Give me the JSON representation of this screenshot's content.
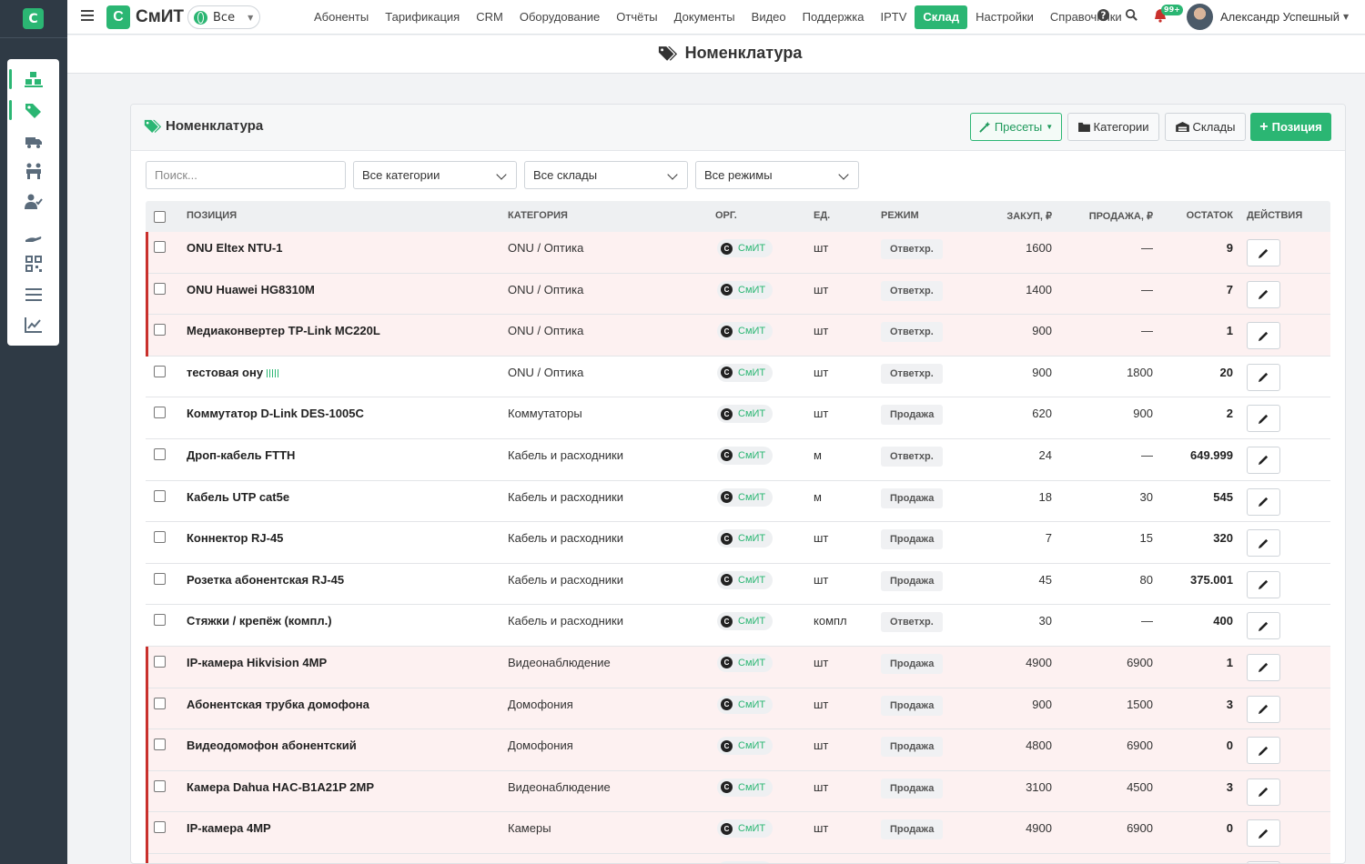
{
  "app": {
    "logo_letter": "С",
    "brand_name": "СмИТ",
    "scope_label": "Все"
  },
  "nav": {
    "items": [
      "Абоненты",
      "Тарификация",
      "CRM",
      "Оборудование",
      "Отчёты",
      "Документы",
      "Видео",
      "Поддержка",
      "IPTV",
      "Склад",
      "Настройки",
      "Справочники"
    ],
    "active": "Склад"
  },
  "top": {
    "notif_badge": "99+",
    "user_name": "Александр Успешный"
  },
  "page": {
    "title": "Номенклатура"
  },
  "card": {
    "title": "Номенклатура",
    "presets_label": "Пресеты",
    "categories_label": "Категории",
    "stores_label": "Склады",
    "add_label": "Позиция"
  },
  "filters": {
    "search_placeholder": "Поиск...",
    "category": "Все категории",
    "store": "Все склады",
    "mode": "Все режимы"
  },
  "table": {
    "headers": {
      "position": "ПОЗИЦИЯ",
      "category": "КАТЕГОРИЯ",
      "org": "ОРГ.",
      "unit": "ЕД.",
      "mode": "РЕЖИМ",
      "buy": "ЗАКУП, ₽",
      "sell": "ПРОДАЖА, ₽",
      "stock": "ОСТАТОК",
      "actions": "ДЕЙСТВИЯ"
    },
    "org_letter": "С",
    "org_name": "СмИТ",
    "rows": [
      {
        "name": "ONU Eltex NTU-1",
        "category": "ONU / Оптика",
        "unit": "шт",
        "mode": "Ответхр.",
        "buy": "1600",
        "sell": "—",
        "stock": "9",
        "alert": true
      },
      {
        "name": "ONU Huawei HG8310M",
        "category": "ONU / Оптика",
        "unit": "шт",
        "mode": "Ответхр.",
        "buy": "1400",
        "sell": "—",
        "stock": "7",
        "alert": true
      },
      {
        "name": "Медиаконвертер TP-Link MC220L",
        "category": "ONU / Оптика",
        "unit": "шт",
        "mode": "Ответхр.",
        "buy": "900",
        "sell": "—",
        "stock": "1",
        "alert": true
      },
      {
        "name": "тестовая ону",
        "category": "ONU / Оптика",
        "unit": "шт",
        "mode": "Ответхр.",
        "buy": "900",
        "sell": "1800",
        "stock": "20",
        "alert": false,
        "barcode": true
      },
      {
        "name": "Коммутатор D-Link DES-1005C",
        "category": "Коммутаторы",
        "unit": "шт",
        "mode": "Продажа",
        "buy": "620",
        "sell": "900",
        "stock": "2",
        "alert": false
      },
      {
        "name": "Дроп-кабель FTTH",
        "category": "Кабель и расходники",
        "unit": "м",
        "mode": "Ответхр.",
        "buy": "24",
        "sell": "—",
        "stock": "649.999",
        "alert": false
      },
      {
        "name": "Кабель UTP cat5e",
        "category": "Кабель и расходники",
        "unit": "м",
        "mode": "Продажа",
        "buy": "18",
        "sell": "30",
        "stock": "545",
        "alert": false
      },
      {
        "name": "Коннектор RJ-45",
        "category": "Кабель и расходники",
        "unit": "шт",
        "mode": "Продажа",
        "buy": "7",
        "sell": "15",
        "stock": "320",
        "alert": false
      },
      {
        "name": "Розетка абонентская RJ-45",
        "category": "Кабель и расходники",
        "unit": "шт",
        "mode": "Продажа",
        "buy": "45",
        "sell": "80",
        "stock": "375.001",
        "alert": false
      },
      {
        "name": "Стяжки / крепёж (компл.)",
        "category": "Кабель и расходники",
        "unit": "компл",
        "mode": "Ответхр.",
        "buy": "30",
        "sell": "—",
        "stock": "400",
        "alert": false
      },
      {
        "name": "IP-камера Hikvision 4MP",
        "category": "Видеонаблюдение",
        "unit": "шт",
        "mode": "Продажа",
        "buy": "4900",
        "sell": "6900",
        "stock": "1",
        "alert": true
      },
      {
        "name": "Абонентская трубка домофона",
        "category": "Домофония",
        "unit": "шт",
        "mode": "Продажа",
        "buy": "900",
        "sell": "1500",
        "stock": "3",
        "alert": true
      },
      {
        "name": "Видеодомофон абонентский",
        "category": "Домофония",
        "unit": "шт",
        "mode": "Продажа",
        "buy": "4800",
        "sell": "6900",
        "stock": "0",
        "alert": true
      },
      {
        "name": "Камера Dahua HAC-B1A21P 2MP",
        "category": "Видеонаблюдение",
        "unit": "шт",
        "mode": "Продажа",
        "buy": "3100",
        "sell": "4500",
        "stock": "3",
        "alert": true
      },
      {
        "name": "IP-камера 4MP",
        "category": "Камеры",
        "unit": "шт",
        "mode": "Продажа",
        "buy": "4900",
        "sell": "6900",
        "stock": "0",
        "alert": true
      },
      {
        "name": "",
        "category": "",
        "unit": "",
        "mode": "",
        "buy": "",
        "sell": "",
        "stock": "",
        "alert": true
      }
    ]
  },
  "colors": {
    "accent": "#2bb673",
    "rail": "#2f3a45",
    "alert_border": "#c9302c",
    "alert_bg": "#fdf1f1"
  }
}
